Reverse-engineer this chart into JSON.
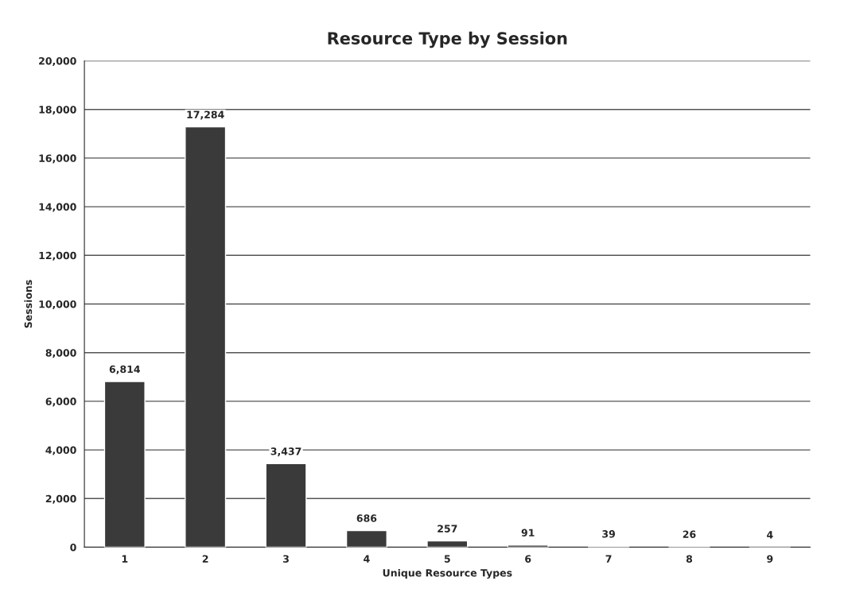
{
  "chart_data": {
    "type": "bar",
    "title": "Resource Type by Session",
    "xlabel": "Unique Resource Types",
    "ylabel": "Sessions",
    "categories": [
      "1",
      "2",
      "3",
      "4",
      "5",
      "6",
      "7",
      "8",
      "9"
    ],
    "values": [
      6814,
      17284,
      3437,
      686,
      257,
      91,
      39,
      26,
      4
    ],
    "value_labels": [
      "6,814",
      "17,284",
      "3,437",
      "686",
      "257",
      "91",
      "39",
      "26",
      "4"
    ],
    "color": "#3a3a3a",
    "ylim": [
      0,
      20000
    ],
    "yticks": [
      {
        "value": 0,
        "label": "0"
      },
      {
        "value": 2000,
        "label": "2,000"
      },
      {
        "value": 4000,
        "label": "4,000"
      },
      {
        "value": 6000,
        "label": "6,000"
      },
      {
        "value": 8000,
        "label": "8,000"
      },
      {
        "value": 10000,
        "label": "10,000"
      },
      {
        "value": 12000,
        "label": "12,000"
      },
      {
        "value": 14000,
        "label": "14,000"
      },
      {
        "value": 16000,
        "label": "16,000"
      },
      {
        "value": 18000,
        "label": "18,000"
      },
      {
        "value": 20000,
        "label": "20,000"
      }
    ],
    "grid": "y",
    "legend": false
  }
}
